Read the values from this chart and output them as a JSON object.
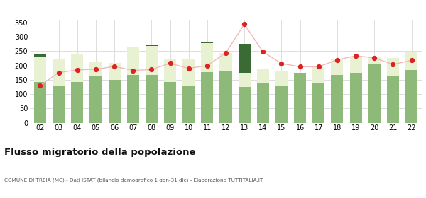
{
  "years": [
    "02",
    "03",
    "04",
    "05",
    "06",
    "07",
    "08",
    "09",
    "10",
    "11",
    "12",
    "13",
    "14",
    "15",
    "16",
    "17",
    "18",
    "19",
    "20",
    "21",
    "22"
  ],
  "iscritti_altri_comuni": [
    143,
    131,
    143,
    161,
    151,
    168,
    168,
    143,
    128,
    178,
    180,
    125,
    137,
    129,
    175,
    141,
    168,
    175,
    204,
    164,
    184
  ],
  "iscritti_estero": [
    88,
    94,
    97,
    53,
    57,
    95,
    100,
    80,
    93,
    100,
    63,
    50,
    52,
    51,
    0,
    53,
    57,
    54,
    26,
    63,
    64
  ],
  "iscritti_altri": [
    10,
    0,
    0,
    0,
    0,
    0,
    5,
    0,
    0,
    5,
    0,
    100,
    0,
    3,
    0,
    0,
    0,
    0,
    0,
    0,
    0
  ],
  "cancellati": [
    130,
    175,
    185,
    187,
    197,
    183,
    186,
    208,
    190,
    200,
    244,
    345,
    248,
    207,
    196,
    196,
    220,
    234,
    227,
    204,
    218
  ],
  "color_altri_comuni": "#8dba78",
  "color_estero": "#e8f2d2",
  "color_altri": "#3a6b35",
  "color_cancellati": "#dd2222",
  "color_line": "#f5b8b8",
  "ylim": [
    0,
    360
  ],
  "yticks": [
    0,
    50,
    100,
    150,
    200,
    250,
    300,
    350
  ],
  "title": "Flusso migratorio della popolazione",
  "subtitle": "COMUNE DI TREIA (MC) - Dati ISTAT (bilancio demografico 1 gen-31 dic) - Elaborazione TUTTITALIA.IT",
  "background_color": "#ffffff",
  "grid_color": "#d8d8d8"
}
